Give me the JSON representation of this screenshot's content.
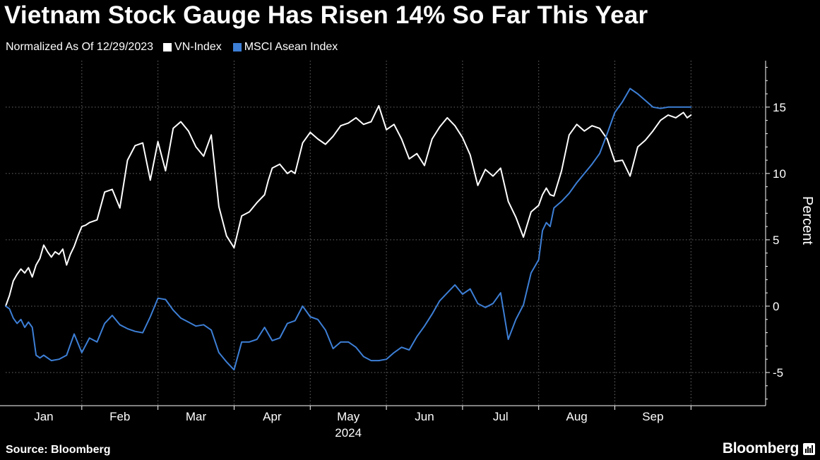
{
  "title": "Vietnam Stock Gauge Has Risen 14% So Far This Year",
  "legend": {
    "note": "Normalized As Of 12/29/2023",
    "items": [
      {
        "label": "VN-Index",
        "color": "#ffffff"
      },
      {
        "label": "MSCI Asean Index",
        "color": "#3d7fd6"
      }
    ]
  },
  "footer": {
    "source": "Source: Bloomberg",
    "brand": "Bloomberg"
  },
  "chart_data": {
    "type": "line",
    "title": "Vietnam Stock Gauge Has Risen 14% So Far This Year",
    "subtitle": "Normalized As Of 12/29/2023",
    "ylabel": "Percent",
    "xlabel": "2024",
    "ylim": [
      -7.5,
      18.5
    ],
    "xlim": [
      0,
      9.98
    ],
    "yticks": [
      -5,
      0,
      5,
      10,
      15
    ],
    "xticks": [
      {
        "label": "Jan",
        "pos": 0.5
      },
      {
        "label": "Feb",
        "pos": 1.5
      },
      {
        "label": "Mar",
        "pos": 2.5
      },
      {
        "label": "Apr",
        "pos": 3.5
      },
      {
        "label": "May",
        "pos": 4.5
      },
      {
        "label": "Jun",
        "pos": 5.5
      },
      {
        "label": "Jul",
        "pos": 6.5
      },
      {
        "label": "Aug",
        "pos": 7.5
      },
      {
        "label": "Sep",
        "pos": 8.5
      }
    ],
    "year_label": "2024",
    "gridlines": [
      1,
      2,
      3,
      4,
      5,
      6,
      7,
      8,
      9
    ],
    "grid": true,
    "series": [
      {
        "name": "VN-Index",
        "color": "#ffffff",
        "x": [
          0,
          0.05,
          0.1,
          0.15,
          0.2,
          0.25,
          0.3,
          0.35,
          0.4,
          0.45,
          0.5,
          0.55,
          0.6,
          0.65,
          0.7,
          0.75,
          0.8,
          0.85,
          0.9,
          0.95,
          1.0,
          1.05,
          1.1,
          1.15,
          1.2,
          1.3,
          1.4,
          1.5,
          1.6,
          1.7,
          1.8,
          1.9,
          2.0,
          2.1,
          2.2,
          2.3,
          2.4,
          2.5,
          2.6,
          2.7,
          2.8,
          2.9,
          3.0,
          3.1,
          3.2,
          3.3,
          3.4,
          3.45,
          3.5,
          3.6,
          3.7,
          3.75,
          3.8,
          3.9,
          4.0,
          4.1,
          4.2,
          4.3,
          4.4,
          4.5,
          4.6,
          4.7,
          4.8,
          4.9,
          5.0,
          5.1,
          5.2,
          5.3,
          5.4,
          5.5,
          5.6,
          5.7,
          5.8,
          5.9,
          6.0,
          6.1,
          6.2,
          6.3,
          6.4,
          6.5,
          6.6,
          6.7,
          6.8,
          6.9,
          7.0,
          7.05,
          7.1,
          7.15,
          7.2,
          7.3,
          7.4,
          7.5,
          7.6,
          7.7,
          7.8,
          7.9,
          8.0,
          8.1,
          8.2,
          8.3,
          8.4,
          8.5,
          8.6,
          8.7,
          8.8,
          8.9,
          8.95,
          9.0
        ],
        "values": [
          0,
          0.8,
          1.9,
          2.4,
          2.8,
          2.5,
          2.9,
          2.2,
          3.1,
          3.6,
          4.6,
          4.1,
          3.7,
          4.1,
          3.9,
          4.3,
          3.1,
          3.9,
          4.5,
          5.3,
          6.0,
          6.1,
          6.3,
          6.4,
          6.5,
          8.6,
          8.8,
          7.4,
          11.0,
          12.1,
          12.3,
          9.5,
          12.4,
          10.2,
          13.4,
          13.9,
          13.2,
          12.0,
          11.3,
          12.9,
          7.5,
          5.3,
          4.4,
          6.8,
          7.1,
          7.8,
          8.4,
          9.5,
          10.4,
          10.7,
          10.0,
          10.2,
          10.0,
          12.3,
          13.1,
          12.6,
          12.2,
          12.8,
          13.6,
          13.8,
          14.2,
          13.7,
          13.9,
          15.1,
          13.3,
          13.7,
          12.6,
          11.1,
          11.5,
          10.6,
          12.6,
          13.5,
          14.2,
          13.6,
          12.7,
          11.4,
          9.1,
          10.3,
          9.8,
          10.4,
          7.9,
          6.7,
          5.2,
          7.1,
          7.6,
          8.4,
          8.9,
          8.4,
          8.3,
          10.2,
          12.9,
          13.7,
          13.2,
          13.6,
          13.4,
          12.6,
          10.9,
          11.0,
          9.8,
          12.0,
          12.5,
          13.2,
          14.0,
          14.4,
          14.2,
          14.6,
          14.2,
          14.4
        ]
      },
      {
        "name": "MSCI Asean Index",
        "color": "#3d7fd6",
        "x": [
          0,
          0.05,
          0.1,
          0.15,
          0.2,
          0.25,
          0.3,
          0.35,
          0.4,
          0.45,
          0.5,
          0.6,
          0.7,
          0.8,
          0.9,
          1.0,
          1.1,
          1.2,
          1.3,
          1.4,
          1.5,
          1.6,
          1.7,
          1.8,
          1.9,
          2.0,
          2.1,
          2.2,
          2.3,
          2.4,
          2.5,
          2.6,
          2.7,
          2.8,
          2.9,
          3.0,
          3.1,
          3.2,
          3.3,
          3.4,
          3.5,
          3.6,
          3.7,
          3.8,
          3.9,
          4.0,
          4.1,
          4.2,
          4.3,
          4.4,
          4.5,
          4.6,
          4.7,
          4.8,
          4.9,
          5.0,
          5.1,
          5.2,
          5.3,
          5.4,
          5.5,
          5.6,
          5.7,
          5.8,
          5.9,
          6.0,
          6.1,
          6.2,
          6.3,
          6.4,
          6.5,
          6.6,
          6.7,
          6.8,
          6.9,
          7.0,
          7.05,
          7.1,
          7.15,
          7.2,
          7.3,
          7.4,
          7.5,
          7.6,
          7.7,
          7.8,
          7.9,
          8.0,
          8.1,
          8.2,
          8.3,
          8.4,
          8.5,
          8.6,
          8.7,
          8.8,
          8.85,
          8.9,
          8.95,
          9.0
        ],
        "values": [
          0,
          -0.2,
          -0.9,
          -1.3,
          -1.0,
          -1.6,
          -1.2,
          -1.6,
          -3.7,
          -3.9,
          -3.7,
          -4.1,
          -4.0,
          -3.7,
          -2.1,
          -3.5,
          -2.4,
          -2.7,
          -1.3,
          -0.7,
          -1.4,
          -1.7,
          -1.9,
          -2.0,
          -0.8,
          0.6,
          0.5,
          -0.3,
          -0.9,
          -1.2,
          -1.5,
          -1.4,
          -1.8,
          -3.5,
          -4.2,
          -4.8,
          -2.7,
          -2.7,
          -2.5,
          -1.6,
          -2.6,
          -2.4,
          -1.3,
          -1.1,
          0.0,
          -0.8,
          -1.0,
          -1.8,
          -3.2,
          -2.7,
          -2.7,
          -3.1,
          -3.8,
          -4.1,
          -4.1,
          -4.0,
          -3.5,
          -3.1,
          -3.3,
          -2.3,
          -1.5,
          -0.6,
          0.4,
          1.0,
          1.6,
          0.9,
          1.3,
          0.2,
          -0.1,
          0.2,
          1.0,
          -2.5,
          -1.0,
          0.1,
          2.5,
          3.5,
          5.7,
          6.3,
          6.0,
          7.4,
          7.9,
          8.5,
          9.3,
          10.0,
          10.7,
          11.5,
          13.0,
          14.6,
          15.4,
          16.4,
          16.0,
          15.5,
          15.0,
          14.9,
          15.0,
          15.0,
          15.0,
          15.0,
          15.0,
          15.0
        ]
      }
    ]
  }
}
